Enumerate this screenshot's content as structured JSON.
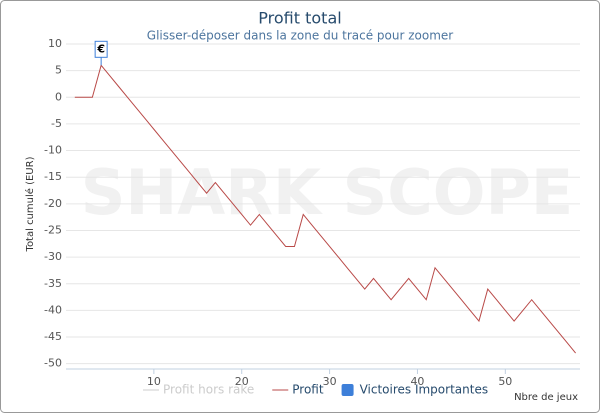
{
  "chart_data": {
    "type": "line",
    "title": "Profit total",
    "subtitle": "Glisser-déposer dans la zone du tracé pour zoomer",
    "watermark": "SHARK SCOPE",
    "x_label": "Nbre de jeux",
    "y_label": "Total cumulé (EUR)",
    "x": [
      1,
      2,
      3,
      4,
      5,
      6,
      7,
      8,
      9,
      10,
      11,
      12,
      13,
      14,
      15,
      16,
      17,
      18,
      19,
      20,
      21,
      22,
      23,
      24,
      25,
      26,
      27,
      28,
      29,
      30,
      31,
      32,
      33,
      34,
      35,
      36,
      37,
      38,
      39,
      40,
      41,
      42,
      43,
      44,
      45,
      46,
      47,
      48,
      49,
      50,
      51,
      52,
      53,
      54,
      55,
      56,
      57,
      58
    ],
    "series": [
      {
        "name": "Profit hors rake",
        "color": "#cccccc",
        "visible": false
      },
      {
        "name": "Profit",
        "color": "#b94a48",
        "values": [
          0,
          0,
          0,
          6,
          4,
          2,
          0,
          -2,
          -4,
          -6,
          -8,
          -10,
          -12,
          -14,
          -16,
          -18,
          -16,
          -18,
          -20,
          -22,
          -24,
          -22,
          -24,
          -26,
          -28,
          -28,
          -22,
          -24,
          -26,
          -28,
          -30,
          -32,
          -34,
          -36,
          -34,
          -36,
          -38,
          -36,
          -34,
          -36,
          -38,
          -32,
          -34,
          -36,
          -38,
          -40,
          -42,
          -36,
          -38,
          -40,
          -42,
          -40,
          -38,
          -40,
          -42,
          -44,
          -46,
          -48
        ]
      }
    ],
    "flags": {
      "name": "Victoires Importantes",
      "color": "#3d7fd9",
      "points": [
        {
          "x": 4,
          "y": 6,
          "label": "€"
        }
      ]
    },
    "xlim": [
      0,
      58.5
    ],
    "ylim": [
      -51,
      10
    ],
    "xticks": [
      10,
      20,
      30,
      40,
      50
    ],
    "yticks": [
      -50,
      -45,
      -40,
      -35,
      -30,
      -25,
      -20,
      -15,
      -10,
      -5,
      0,
      5,
      10
    ],
    "grid": true
  }
}
